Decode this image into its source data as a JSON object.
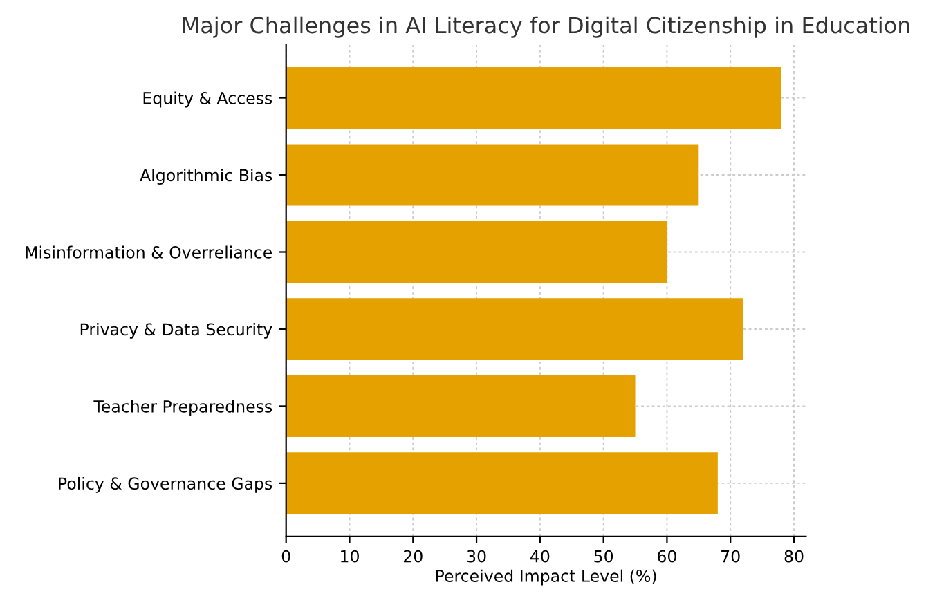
{
  "chart_data": {
    "type": "bar",
    "orientation": "horizontal",
    "title": "Major Challenges in AI Literacy for Digital Citizenship in Education",
    "xlabel": "Perceived Impact Level (%)",
    "categories": [
      "Equity & Access",
      "Algorithmic Bias",
      "Misinformation & Overreliance",
      "Privacy & Data Security",
      "Teacher Preparedness",
      "Policy & Governance Gaps"
    ],
    "values": [
      78,
      65,
      60,
      72,
      55,
      68
    ],
    "color": "#e5a100",
    "xlim": [
      0,
      81.9
    ],
    "xticks": [
      0,
      10,
      20,
      30,
      40,
      50,
      60,
      70,
      80
    ],
    "grid": true
  }
}
